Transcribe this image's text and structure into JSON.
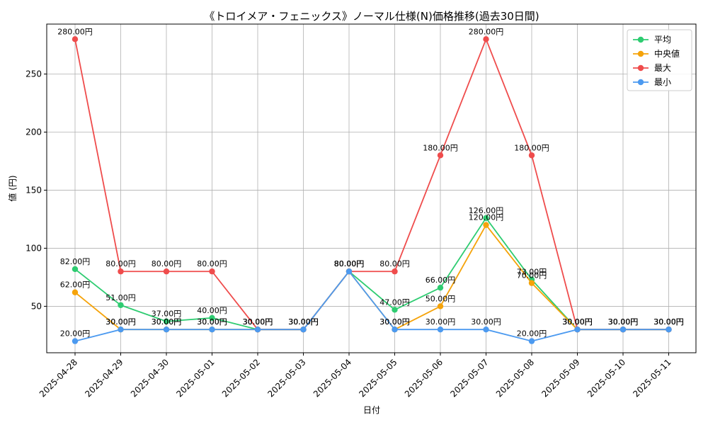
{
  "chart_data": {
    "type": "line",
    "title": "《トロイメア・フェニックス》ノーマル仕様(N)価格推移(過去30日間)",
    "xlabel": "日付",
    "ylabel": "値 (円)",
    "ylim": [
      10,
      293
    ],
    "yticks": [
      50,
      100,
      150,
      200,
      250
    ],
    "grid": true,
    "legend_position": "top-right",
    "categories": [
      "2025-04-28",
      "2025-04-29",
      "2025-04-30",
      "2025-05-01",
      "2025-05-02",
      "2025-05-03",
      "2025-05-04",
      "2025-05-05",
      "2025-05-06",
      "2025-05-07",
      "2025-05-08",
      "2025-05-09",
      "2025-05-10",
      "2025-05-11"
    ],
    "series": [
      {
        "name": "平均",
        "color": "#2ecc71",
        "values": [
          82,
          51,
          37,
          40,
          30,
          30,
          80,
          47,
          66,
          126,
          73,
          30,
          30,
          30
        ],
        "labels": [
          "82.00円",
          "51.00円",
          "37.00円",
          "40.00円",
          "30.00円",
          "30.00円",
          "80.00円",
          "47.00円",
          "66.00円",
          "126.00円",
          "73.00円",
          "30.00円",
          "30.00円",
          "30.00円"
        ]
      },
      {
        "name": "中央値",
        "color": "#f5a30a",
        "values": [
          62,
          30,
          30,
          30,
          30,
          30,
          80,
          30,
          50,
          120,
          70,
          30,
          30,
          30
        ],
        "labels": [
          "62.00円",
          "30.00円",
          "30.00円",
          "30.00円",
          "30.00円",
          "30.00円",
          "80.00円",
          "30.00円",
          "50.00円",
          "120.00円",
          "70.00円",
          "30.00円",
          "30.00円",
          "30.00円"
        ]
      },
      {
        "name": "最大",
        "color": "#ef4c4c",
        "values": [
          280,
          80,
          80,
          80,
          30,
          30,
          80,
          80,
          180,
          280,
          180,
          30,
          30,
          30
        ],
        "labels": [
          "280.00円",
          "80.00円",
          "80.00円",
          "80.00円",
          "30.00円",
          "30.00円",
          "80.00円",
          "80.00円",
          "180.00円",
          "280.00円",
          "180.00円",
          "30.00円",
          "30.00円",
          "30.00円"
        ]
      },
      {
        "name": "最小",
        "color": "#4c9af0",
        "values": [
          20,
          30,
          30,
          30,
          30,
          30,
          80,
          30,
          30,
          30,
          20,
          30,
          30,
          30
        ],
        "labels": [
          "20.00円",
          "30.00円",
          "30.00円",
          "30.00円",
          "30.00円",
          "30.00円",
          "80.00円",
          "30.00円",
          "30.00円",
          "30.00円",
          "20.00円",
          "30.00円",
          "30.00円",
          "30.00円"
        ]
      }
    ]
  }
}
